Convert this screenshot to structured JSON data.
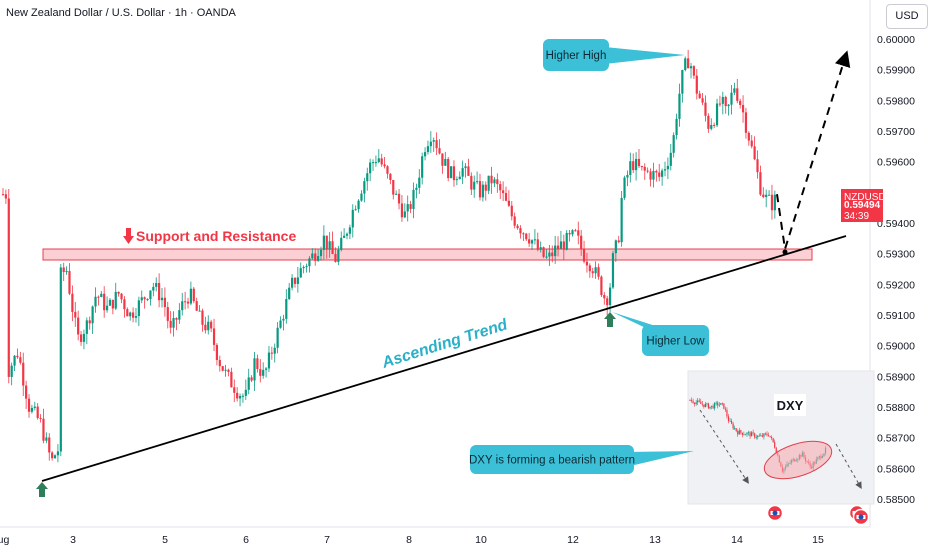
{
  "header": {
    "title": "New Zealand Dollar / U.S. Dollar · 1h · OANDA",
    "currency_button": "USD"
  },
  "price_tag": {
    "symbol": "NZDUSD",
    "price": "0.59494",
    "countdown": "34:39"
  },
  "colors": {
    "up_candle": "#089981",
    "down_candle": "#f23645",
    "callout_fill": "#3bc0d7",
    "trend_text": "#2ab0c7",
    "zone_fill": "#f7a8ae",
    "zone_border": "#e0404c",
    "marker_arrow": "#2e7d5b"
  },
  "annotations": {
    "higher_high": "Higher High",
    "higher_low": "Higher Low",
    "support_resistance": "Support and Resistance",
    "ascending_trend": "Ascending Trend",
    "dxy_note": "DXY is forming a bearish pattern",
    "dxy_label": "DXY"
  },
  "chart_data": {
    "type": "candlestick",
    "y_axis_labels": [
      "0.60000",
      "0.59900",
      "0.59800",
      "0.59700",
      "0.59600",
      "0.59400",
      "0.59300",
      "0.59200",
      "0.59100",
      "0.59000",
      "0.58900",
      "0.58800",
      "0.58700",
      "0.58600",
      "0.58500"
    ],
    "y_range": [
      0.5844,
      0.6008
    ],
    "x_axis_labels": [
      "Aug",
      "3",
      "5",
      "6",
      "7",
      "8",
      "10",
      "12",
      "13",
      "14",
      "15"
    ],
    "last_price": 0.59494,
    "support_resistance_zone": [
      0.5929,
      0.5932
    ],
    "trendline": {
      "from": {
        "x": "Aug 2",
        "y": 0.5857
      },
      "to": {
        "x": "Aug 14",
        "y": 0.5936
      }
    },
    "key_levels": {
      "higher_high": 0.59957,
      "higher_low": 0.5913
    },
    "path_points": [
      [
        3,
        0.5892
      ],
      [
        8,
        0.5898
      ],
      [
        14,
        0.588
      ],
      [
        20,
        0.5875
      ],
      [
        26,
        0.5862
      ],
      [
        29,
        0.5866
      ],
      [
        30,
        0.5866
      ],
      [
        31,
        0.5923
      ],
      [
        34,
        0.5925
      ],
      [
        37,
        0.5913
      ],
      [
        40,
        0.5902
      ],
      [
        45,
        0.5907
      ],
      [
        50,
        0.5917
      ],
      [
        56,
        0.5912
      ],
      [
        62,
        0.5917
      ],
      [
        68,
        0.591
      ],
      [
        75,
        0.5915
      ],
      [
        80,
        0.592
      ],
      [
        86,
        0.5915
      ],
      [
        90,
        0.5904
      ],
      [
        95,
        0.5912
      ],
      [
        100,
        0.5917
      ],
      [
        106,
        0.5908
      ],
      [
        111,
        0.5905
      ],
      [
        116,
        0.5895
      ],
      [
        120,
        0.589
      ],
      [
        126,
        0.5885
      ],
      [
        130,
        0.5883
      ],
      [
        135,
        0.5895
      ],
      [
        140,
        0.589
      ],
      [
        145,
        0.59
      ],
      [
        150,
        0.591
      ],
      [
        155,
        0.592
      ],
      [
        160,
        0.5925
      ],
      [
        167,
        0.593
      ],
      [
        172,
        0.5935
      ],
      [
        178,
        0.5928
      ],
      [
        183,
        0.5935
      ],
      [
        188,
        0.5945
      ],
      [
        193,
        0.5953
      ],
      [
        197,
        0.5959
      ],
      [
        201,
        0.5962
      ],
      [
        206,
        0.5955
      ],
      [
        211,
        0.5948
      ],
      [
        216,
        0.5942
      ],
      [
        221,
        0.595
      ],
      [
        226,
        0.5965
      ],
      [
        230,
        0.597
      ],
      [
        236,
        0.596
      ],
      [
        241,
        0.5955
      ],
      [
        246,
        0.5958
      ],
      [
        251,
        0.5953
      ],
      [
        256,
        0.595
      ],
      [
        262,
        0.5954
      ],
      [
        267,
        0.595
      ],
      [
        272,
        0.5943
      ],
      [
        278,
        0.5938
      ],
      [
        283,
        0.5935
      ],
      [
        288,
        0.593
      ],
      [
        292,
        0.5928
      ],
      [
        297,
        0.5932
      ],
      [
        302,
        0.5934
      ],
      [
        307,
        0.5936
      ],
      [
        312,
        0.5929
      ],
      [
        316,
        0.5926
      ],
      [
        320,
        0.592
      ],
      [
        323,
        0.5915
      ],
      [
        325,
        0.5917
      ],
      [
        327,
        0.5928
      ],
      [
        330,
        0.5935
      ],
      [
        332,
        0.595
      ],
      [
        337,
        0.596
      ],
      [
        342,
        0.5957
      ],
      [
        348,
        0.5956
      ],
      [
        352,
        0.5955
      ],
      [
        356,
        0.596
      ],
      [
        359,
        0.5965
      ],
      [
        362,
        0.598
      ],
      [
        365,
        0.599
      ],
      [
        368,
        0.5994
      ],
      [
        371,
        0.5985
      ],
      [
        374,
        0.598
      ],
      [
        378,
        0.5972
      ],
      [
        382,
        0.5975
      ],
      [
        385,
        0.598
      ],
      [
        388,
        0.5975
      ],
      [
        392,
        0.5985
      ],
      [
        396,
        0.5978
      ],
      [
        400,
        0.5968
      ],
      [
        403,
        0.596
      ],
      [
        406,
        0.5952
      ],
      [
        409,
        0.5948
      ],
      [
        413,
        0.5946
      ],
      [
        415,
        0.59494
      ]
    ],
    "projection": [
      [
        415,
        0.59494
      ],
      [
        420,
        0.5932
      ],
      [
        434,
        0.5995
      ]
    ],
    "dxy_inset": {
      "title": "DXY",
      "path": [
        [
          0,
          0.92
        ],
        [
          8,
          0.88
        ],
        [
          15,
          0.85
        ],
        [
          20,
          0.88
        ],
        [
          24,
          0.86
        ],
        [
          28,
          0.7
        ],
        [
          34,
          0.6
        ],
        [
          42,
          0.58
        ],
        [
          50,
          0.55
        ],
        [
          56,
          0.58
        ],
        [
          60,
          0.48
        ],
        [
          66,
          0.22
        ],
        [
          72,
          0.3
        ],
        [
          80,
          0.38
        ],
        [
          86,
          0.25
        ],
        [
          92,
          0.34
        ],
        [
          97,
          0.42
        ],
        [
          100,
          0.38
        ]
      ]
    }
  }
}
